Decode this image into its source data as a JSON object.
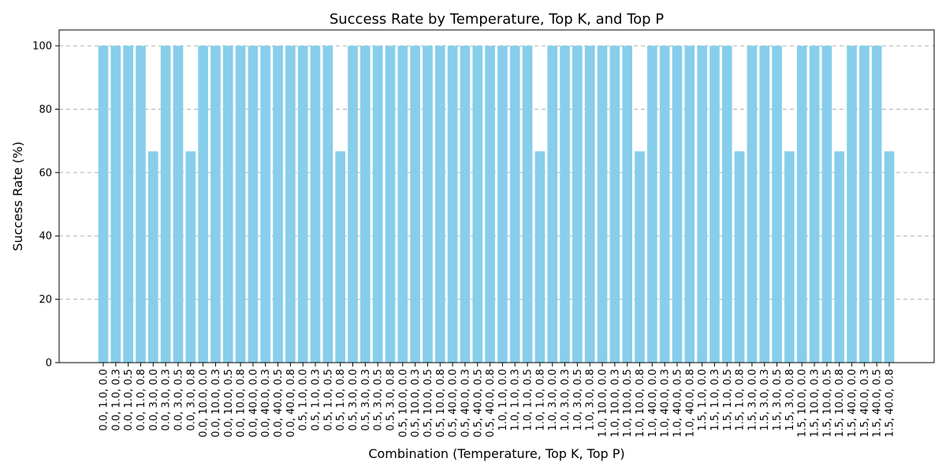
{
  "chart_data": {
    "type": "bar",
    "title": "Success Rate by Temperature, Top K, and Top P",
    "xlabel": "Combination (Temperature, Top K, Top P)",
    "ylabel": "Success Rate (%)",
    "ylim": [
      0,
      105
    ],
    "yticks": [
      0,
      20,
      40,
      60,
      80,
      100
    ],
    "grid": "y-dashed",
    "bar_color": "#87CEEB",
    "categories": [
      "0.0, 1.0, 0.0",
      "0.0, 1.0, 0.3",
      "0.0, 1.0, 0.5",
      "0.0, 1.0, 0.8",
      "0.0, 3.0, 0.0",
      "0.0, 3.0, 0.3",
      "0.0, 3.0, 0.5",
      "0.0, 3.0, 0.8",
      "0.0, 10.0, 0.0",
      "0.0, 10.0, 0.3",
      "0.0, 10.0, 0.5",
      "0.0, 10.0, 0.8",
      "0.0, 40.0, 0.0",
      "0.0, 40.0, 0.3",
      "0.0, 40.0, 0.5",
      "0.0, 40.0, 0.8",
      "0.5, 1.0, 0.0",
      "0.5, 1.0, 0.3",
      "0.5, 1.0, 0.5",
      "0.5, 1.0, 0.8",
      "0.5, 3.0, 0.0",
      "0.5, 3.0, 0.3",
      "0.5, 3.0, 0.5",
      "0.5, 3.0, 0.8",
      "0.5, 10.0, 0.0",
      "0.5, 10.0, 0.3",
      "0.5, 10.0, 0.5",
      "0.5, 10.0, 0.8",
      "0.5, 40.0, 0.0",
      "0.5, 40.0, 0.3",
      "0.5, 40.0, 0.5",
      "0.5, 40.0, 0.8",
      "1.0, 1.0, 0.0",
      "1.0, 1.0, 0.3",
      "1.0, 1.0, 0.5",
      "1.0, 1.0, 0.8",
      "1.0, 3.0, 0.0",
      "1.0, 3.0, 0.3",
      "1.0, 3.0, 0.5",
      "1.0, 3.0, 0.8",
      "1.0, 10.0, 0.0",
      "1.0, 10.0, 0.3",
      "1.0, 10.0, 0.5",
      "1.0, 10.0, 0.8",
      "1.0, 40.0, 0.0",
      "1.0, 40.0, 0.3",
      "1.0, 40.0, 0.5",
      "1.0, 40.0, 0.8",
      "1.5, 1.0, 0.0",
      "1.5, 1.0, 0.3",
      "1.5, 1.0, 0.5",
      "1.5, 1.0, 0.8",
      "1.5, 3.0, 0.0",
      "1.5, 3.0, 0.3",
      "1.5, 3.0, 0.5",
      "1.5, 3.0, 0.8",
      "1.5, 10.0, 0.0",
      "1.5, 10.0, 0.3",
      "1.5, 10.0, 0.5",
      "1.5, 10.0, 0.8",
      "1.5, 40.0, 0.0",
      "1.5, 40.0, 0.3",
      "1.5, 40.0, 0.5",
      "1.5, 40.0, 0.8"
    ],
    "values": [
      100,
      100,
      100,
      100,
      66.7,
      100,
      100,
      66.7,
      100,
      100,
      100,
      100,
      100,
      100,
      100,
      100,
      100,
      100,
      100,
      66.7,
      100,
      100,
      100,
      100,
      100,
      100,
      100,
      100,
      100,
      100,
      100,
      100,
      100,
      100,
      100,
      66.7,
      100,
      100,
      100,
      100,
      100,
      100,
      100,
      66.7,
      100,
      100,
      100,
      100,
      100,
      100,
      100,
      66.7,
      100,
      100,
      100,
      66.7,
      100,
      100,
      100,
      66.7,
      100,
      100,
      100,
      66.7
    ]
  }
}
